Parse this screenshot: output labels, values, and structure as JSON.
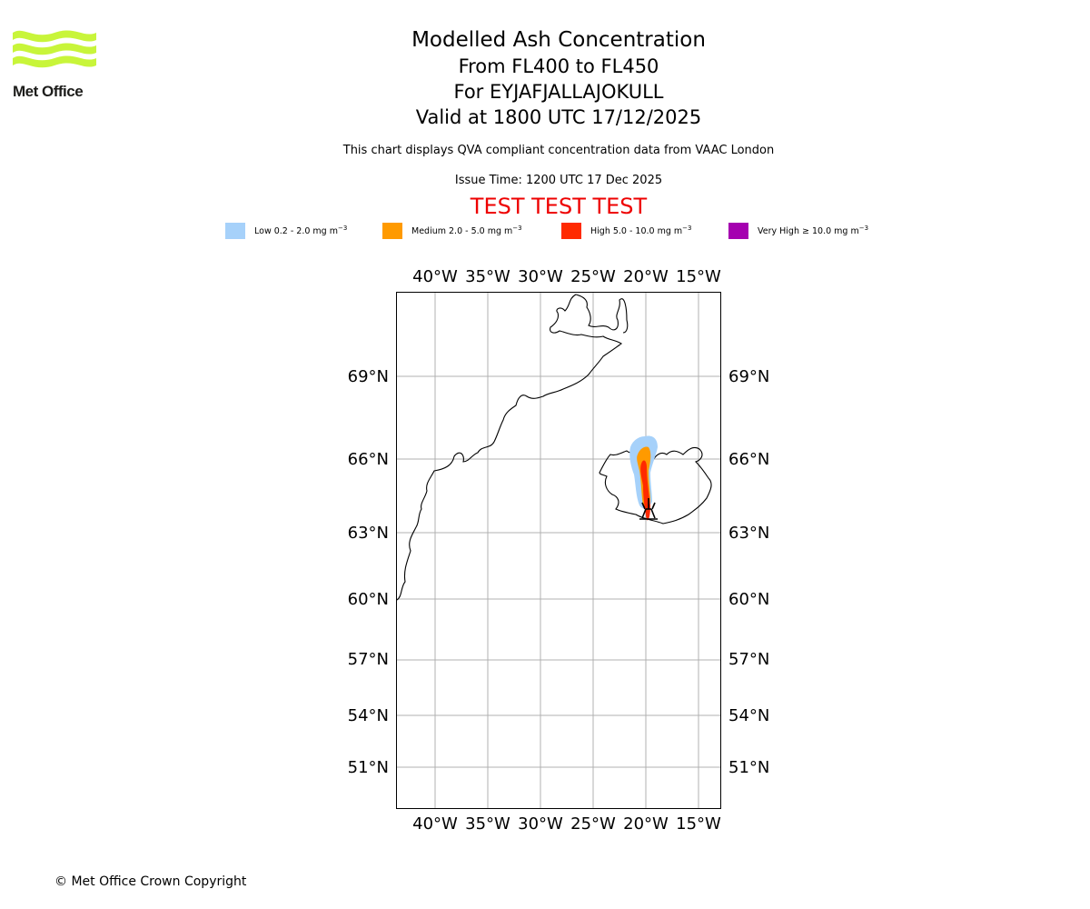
{
  "logo": {
    "name": "Met Office"
  },
  "titles": {
    "main": "Modelled Ash Concentration",
    "levels": "From FL400 to FL450",
    "volcano": "For EYJAFJALLAJOKULL",
    "valid": "Valid at 1800 UTC 17/12/2025"
  },
  "subtitle": "This chart displays QVA compliant concentration data from VAAC London",
  "issue_time": "Issue Time: 1200 UTC 17 Dec 2025",
  "test_banner": "TEST TEST TEST",
  "legend": {
    "items": [
      {
        "label": "Low 0.2 - 2.0 mg m",
        "unit_sup": "−3",
        "color": "#a6d1fa"
      },
      {
        "label": "Medium 2.0 - 5.0 mg m",
        "unit_sup": "−3",
        "color": "#ff9a00"
      },
      {
        "label": "High 5.0 - 10.0 mg m",
        "unit_sup": "−3",
        "color": "#ff2a00"
      },
      {
        "label": "Very High  ≥  10.0 mg m",
        "unit_sup": "−3",
        "color": "#a500b0"
      }
    ]
  },
  "map": {
    "lon_labels": [
      "40°W",
      "35°W",
      "30°W",
      "25°W",
      "20°W",
      "15°W"
    ],
    "lat_labels": [
      "69°N",
      "66°N",
      "63°N",
      "60°N",
      "57°N",
      "54°N",
      "51°N"
    ],
    "volcano_symbol": "volcano-icon"
  },
  "copyright": "© Met Office Crown Copyright"
}
